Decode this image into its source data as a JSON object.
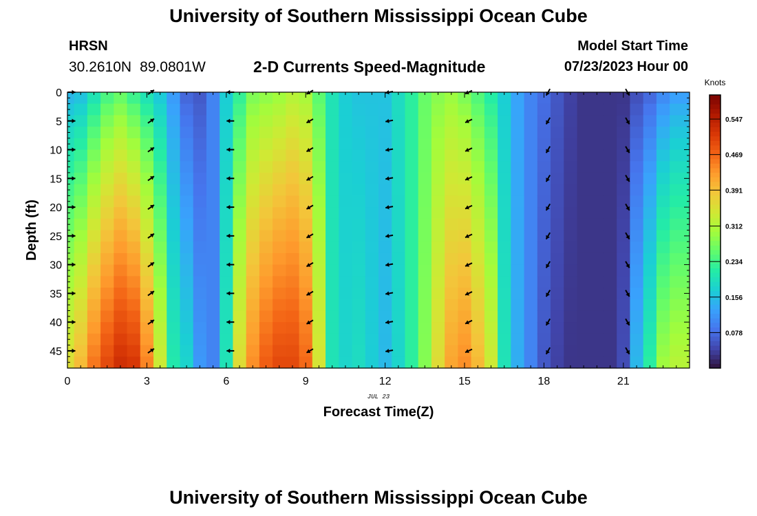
{
  "header": {
    "title": "University of Southern Mississippi Ocean Cube",
    "station": "HRSN",
    "latitude": "30.2610N",
    "longitude": "89.0801W",
    "subtitle": "2-D Currents Speed-Magnitude",
    "model_start_label": "Model Start Time",
    "model_start_value": "07/23/2023 Hour 00"
  },
  "footer": {
    "title": "University of Southern Mississippi Ocean Cube"
  },
  "chart_data": {
    "type": "heatmap",
    "title": "2-D Currents Speed-Magnitude",
    "xlabel": "Forecast Time(Z)",
    "ylabel": "Depth (ft)",
    "date_label": "JUL 23",
    "x_ticks": [
      0,
      3,
      6,
      9,
      12,
      15,
      18,
      21
    ],
    "y_ticks": [
      0,
      5,
      10,
      15,
      20,
      25,
      30,
      35,
      40,
      45
    ],
    "xlim": [
      0,
      23.5
    ],
    "ylim": [
      0,
      48
    ],
    "colorbar": {
      "unit_label": "Knots",
      "ticks": [
        "0.547",
        "0.469",
        "0.391",
        "0.312",
        "0.234",
        "0.156",
        "0.078"
      ],
      "tick_values": [
        0.547,
        0.469,
        0.391,
        0.312,
        0.234,
        0.156,
        0.078
      ],
      "range": [
        0.0,
        0.6
      ],
      "colors": [
        "#30123b",
        "#4145ab",
        "#4675ed",
        "#39a2fc",
        "#1bcfd4",
        "#24eca6",
        "#61fc6c",
        "#a4fc3b",
        "#d1e834",
        "#f3c63a",
        "#fe9b2d",
        "#f36315",
        "#d93806",
        "#b11901",
        "#7a0402"
      ]
    },
    "hours": [
      0,
      0.5,
      1,
      1.5,
      2,
      2.5,
      3,
      3.5,
      4,
      4.5,
      5,
      5.5,
      6,
      6.5,
      7,
      7.5,
      8,
      8.5,
      9,
      9.5,
      10,
      10.5,
      11,
      11.5,
      12,
      12.5,
      13,
      13.5,
      14,
      14.5,
      15,
      15.5,
      16,
      16.5,
      17,
      17.5,
      18,
      18.5,
      19,
      19.5,
      20,
      20.5,
      21,
      21.5,
      22,
      22.5,
      23
    ],
    "speed_surface": [
      0.14,
      0.15,
      0.19,
      0.23,
      0.25,
      0.22,
      0.19,
      0.16,
      0.12,
      0.07,
      0.06,
      0.1,
      0.17,
      0.22,
      0.27,
      0.28,
      0.29,
      0.31,
      0.3,
      0.25,
      0.2,
      0.17,
      0.16,
      0.16,
      0.16,
      0.19,
      0.22,
      0.26,
      0.28,
      0.29,
      0.27,
      0.24,
      0.21,
      0.17,
      0.13,
      0.1,
      0.08,
      0.06,
      0.04,
      0.03,
      0.03,
      0.03,
      0.03,
      0.05,
      0.07,
      0.1,
      0.12
    ],
    "speed_bottom": [
      0.36,
      0.4,
      0.46,
      0.5,
      0.53,
      0.52,
      0.45,
      0.34,
      0.21,
      0.18,
      0.12,
      0.1,
      0.2,
      0.36,
      0.44,
      0.48,
      0.5,
      0.5,
      0.47,
      0.35,
      0.2,
      0.18,
      0.19,
      0.17,
      0.15,
      0.18,
      0.22,
      0.28,
      0.36,
      0.42,
      0.44,
      0.4,
      0.34,
      0.2,
      0.14,
      0.1,
      0.06,
      0.04,
      0.03,
      0.03,
      0.03,
      0.03,
      0.05,
      0.15,
      0.22,
      0.3,
      0.32
    ],
    "vector_hours": [
      0,
      3,
      6,
      9,
      12,
      15,
      18,
      21
    ],
    "vector_depths": [
      5,
      10,
      15,
      20,
      25,
      30,
      35,
      40,
      45
    ],
    "vector_directions_deg": [
      0,
      35,
      180,
      210,
      190,
      205,
      240,
      300
    ]
  }
}
